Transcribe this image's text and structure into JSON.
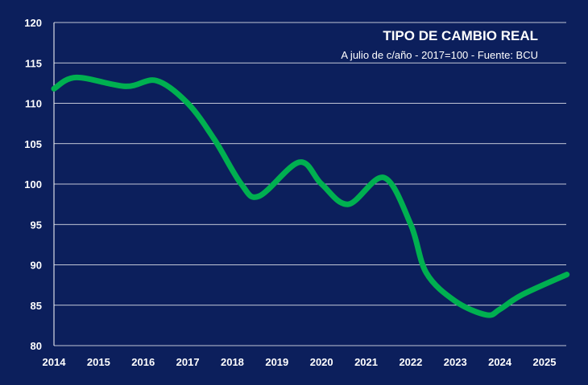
{
  "chart_data": {
    "type": "line",
    "title": "TIPO DE CAMBIO REAL",
    "subtitle": "A julio de c/año - 2017=100 - Fuente: BCU",
    "xlabel": "",
    "ylabel": "",
    "xlim": [
      2014,
      2025.5
    ],
    "ylim": [
      80,
      120
    ],
    "x_ticks": [
      "2014",
      "2015",
      "2016",
      "2017",
      "2018",
      "2019",
      "2020",
      "2021",
      "2022",
      "2023",
      "2024",
      "2025"
    ],
    "y_ticks": [
      "80",
      "85",
      "90",
      "95",
      "100",
      "105",
      "110",
      "115",
      "120"
    ],
    "grid": true,
    "line_color": "#00b050",
    "background": "#0c1f5c",
    "series": [
      {
        "name": "Tipo de cambio real",
        "x": [
          2014,
          2014.5,
          2015.6,
          2016.3,
          2017,
          2017.6,
          2018.2,
          2018.6,
          2019.5,
          2020,
          2020.6,
          2021.4,
          2022,
          2022.35,
          2023,
          2023.7,
          2024,
          2024.5,
          2025.5
        ],
        "values": [
          111.8,
          113.2,
          112.1,
          112.8,
          110,
          105.5,
          100,
          98.5,
          102.7,
          100,
          97.5,
          100.8,
          95,
          89,
          85.5,
          83.8,
          84.5,
          86.3,
          88.8
        ]
      }
    ]
  }
}
